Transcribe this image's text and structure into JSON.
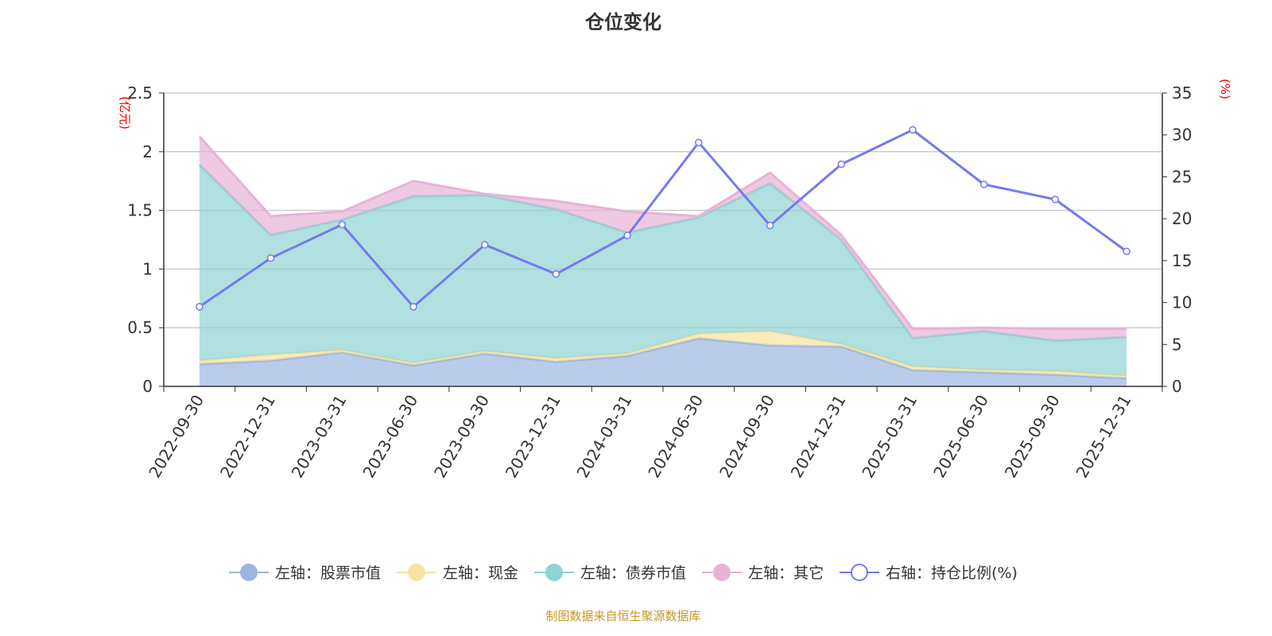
{
  "title": "仓位变化",
  "source": "制图数据来自恒生聚源数据库",
  "chart_data": {
    "type": "area",
    "stacked": true,
    "title": "仓位变化",
    "categories": [
      "2022-09-30",
      "2022-12-31",
      "2023-03-31",
      "2023-06-30",
      "2023-09-30",
      "2023-12-31",
      "2024-03-31",
      "2024-06-30",
      "2024-09-30",
      "2024-12-31",
      "2025-03-31",
      "2025-06-30",
      "2025-09-30",
      "2025-12-31"
    ],
    "left_axis": {
      "label": "(亿元)",
      "range": [
        0,
        2.5
      ],
      "ticks": [
        "0",
        "0.5",
        "1",
        "1.5",
        "2",
        "2.5"
      ]
    },
    "right_axis": {
      "label": "(%)",
      "range": [
        0,
        35
      ],
      "ticks": [
        "0",
        "5",
        "10",
        "15",
        "20",
        "25",
        "30",
        "35"
      ]
    },
    "grid": true,
    "legend_position": "bottom",
    "series": [
      {
        "name": "左轴：股票市值",
        "axis": "left",
        "color": "#9bb5e0",
        "values": [
          0.19,
          0.22,
          0.29,
          0.18,
          0.28,
          0.21,
          0.26,
          0.41,
          0.35,
          0.34,
          0.14,
          0.12,
          0.1,
          0.07
        ]
      },
      {
        "name": "左轴：现金",
        "axis": "left",
        "color": "#f7e3a0",
        "values": [
          0.03,
          0.05,
          0.02,
          0.02,
          0.02,
          0.03,
          0.02,
          0.04,
          0.12,
          0.02,
          0.03,
          0.02,
          0.03,
          0.02
        ]
      },
      {
        "name": "左轴：债券市值",
        "axis": "left",
        "color": "#8fd3d3",
        "values": [
          1.67,
          1.02,
          1.11,
          1.42,
          1.33,
          1.27,
          1.03,
          0.99,
          1.26,
          0.89,
          0.24,
          0.33,
          0.26,
          0.33
        ]
      },
      {
        "name": "左轴：其它",
        "axis": "left",
        "color": "#e6b3d6",
        "values": [
          0.24,
          0.16,
          0.07,
          0.13,
          0.01,
          0.07,
          0.18,
          0.01,
          0.09,
          0.04,
          0.08,
          0.03,
          0.1,
          0.07
        ]
      },
      {
        "name": "右轴：持仓比例(%)",
        "axis": "right",
        "type": "line",
        "color": "#7479f0",
        "values": [
          9.5,
          15.3,
          19.3,
          9.5,
          16.9,
          13.4,
          18.0,
          29.1,
          19.2,
          26.5,
          30.6,
          24.1,
          22.3,
          16.1
        ]
      }
    ]
  }
}
